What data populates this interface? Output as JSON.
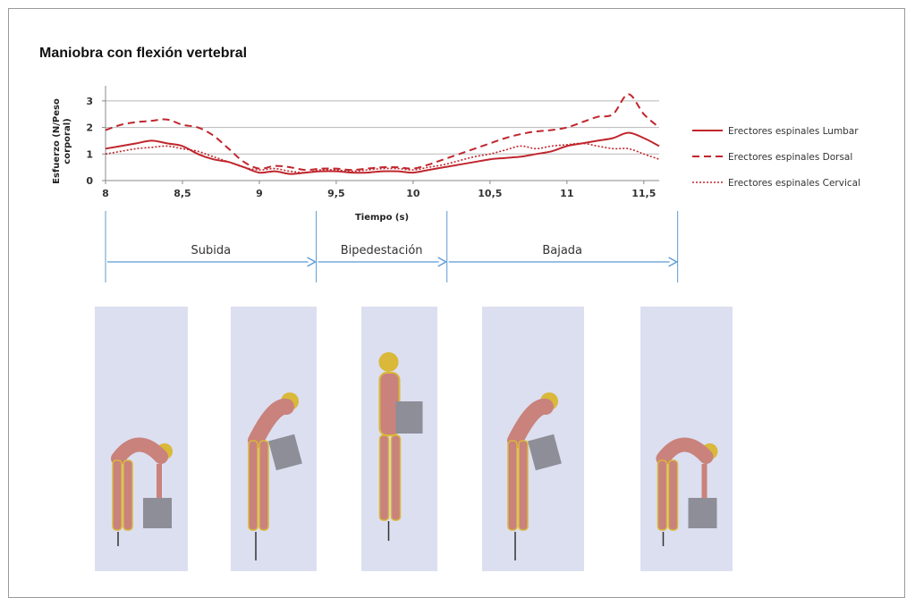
{
  "figure": {
    "title": "Maniobra con flexión vertebral"
  },
  "chart_data": {
    "type": "line",
    "title": "",
    "xlabel": "Tiempo (s)",
    "ylabel": "Esfuerzo (N/Peso corporal)",
    "ylabel_lines": [
      "Esfuerzo (N/Peso",
      "corporal)"
    ],
    "xlim": [
      8,
      11.6
    ],
    "ylim": [
      0,
      3.5
    ],
    "xticks": [
      8,
      8.5,
      9,
      9.5,
      10,
      10.5,
      11,
      11.5
    ],
    "xtick_labels": [
      "8",
      "8,5",
      "9",
      "9,5",
      "10",
      "10,5",
      "11",
      "11,5"
    ],
    "yticks": [
      0,
      1,
      2,
      3
    ],
    "ytick_labels": [
      "0",
      "1",
      "2",
      "3"
    ],
    "grid": "horizontal",
    "legend_position": "right",
    "x": [
      8.0,
      8.1,
      8.2,
      8.3,
      8.4,
      8.5,
      8.6,
      8.7,
      8.8,
      8.9,
      9.0,
      9.1,
      9.2,
      9.3,
      9.4,
      9.5,
      9.6,
      9.7,
      9.8,
      9.9,
      10.0,
      10.1,
      10.2,
      10.3,
      10.4,
      10.5,
      10.6,
      10.7,
      10.8,
      10.9,
      11.0,
      11.1,
      11.2,
      11.3,
      11.4,
      11.5,
      11.6
    ],
    "series": [
      {
        "name": "Erectores espinales Lumbar",
        "style": "solid",
        "color": "#c0262d",
        "values": [
          1.2,
          1.3,
          1.4,
          1.5,
          1.4,
          1.3,
          1.0,
          0.8,
          0.7,
          0.5,
          0.3,
          0.35,
          0.25,
          0.3,
          0.35,
          0.35,
          0.3,
          0.3,
          0.35,
          0.35,
          0.3,
          0.4,
          0.5,
          0.6,
          0.7,
          0.8,
          0.85,
          0.9,
          1.0,
          1.1,
          1.3,
          1.4,
          1.5,
          1.6,
          1.8,
          1.6,
          1.3
        ]
      },
      {
        "name": "Erectores espinales Dorsal",
        "style": "dashed",
        "color": "#c0262d",
        "values": [
          1.9,
          2.1,
          2.2,
          2.25,
          2.3,
          2.1,
          2.0,
          1.7,
          1.2,
          0.7,
          0.45,
          0.55,
          0.5,
          0.4,
          0.45,
          0.45,
          0.4,
          0.45,
          0.5,
          0.5,
          0.45,
          0.6,
          0.8,
          1.0,
          1.2,
          1.4,
          1.6,
          1.75,
          1.85,
          1.9,
          2.0,
          2.2,
          2.4,
          2.5,
          3.25,
          2.5,
          2.0
        ]
      },
      {
        "name": "Erectores espinales Cervical",
        "style": "dotted",
        "color": "#c0262d",
        "values": [
          1.0,
          1.1,
          1.2,
          1.25,
          1.3,
          1.2,
          1.1,
          0.9,
          0.7,
          0.5,
          0.4,
          0.45,
          0.35,
          0.3,
          0.4,
          0.4,
          0.35,
          0.4,
          0.45,
          0.45,
          0.4,
          0.5,
          0.6,
          0.75,
          0.9,
          1.0,
          1.15,
          1.3,
          1.2,
          1.3,
          1.35,
          1.4,
          1.3,
          1.2,
          1.2,
          1.0,
          0.8
        ]
      }
    ]
  },
  "phases": [
    {
      "label": "Subida",
      "start": 8.0,
      "end": 9.37
    },
    {
      "label": "Bipedestación",
      "start": 9.37,
      "end": 10.22
    },
    {
      "label": "Bajada",
      "start": 10.22,
      "end": 11.72
    }
  ],
  "colors": {
    "line": "#c0262d",
    "phase_arrow": "#5b9bd5",
    "panel_bg": "#dcdff0",
    "gridline": "#b8b8b8"
  },
  "figures": [
    {
      "pose": "bent-lifting-box-low"
    },
    {
      "pose": "bent-holding-box-mid"
    },
    {
      "pose": "standing-holding-box"
    },
    {
      "pose": "bent-holding-box-mid"
    },
    {
      "pose": "bent-lifting-box-low"
    }
  ]
}
